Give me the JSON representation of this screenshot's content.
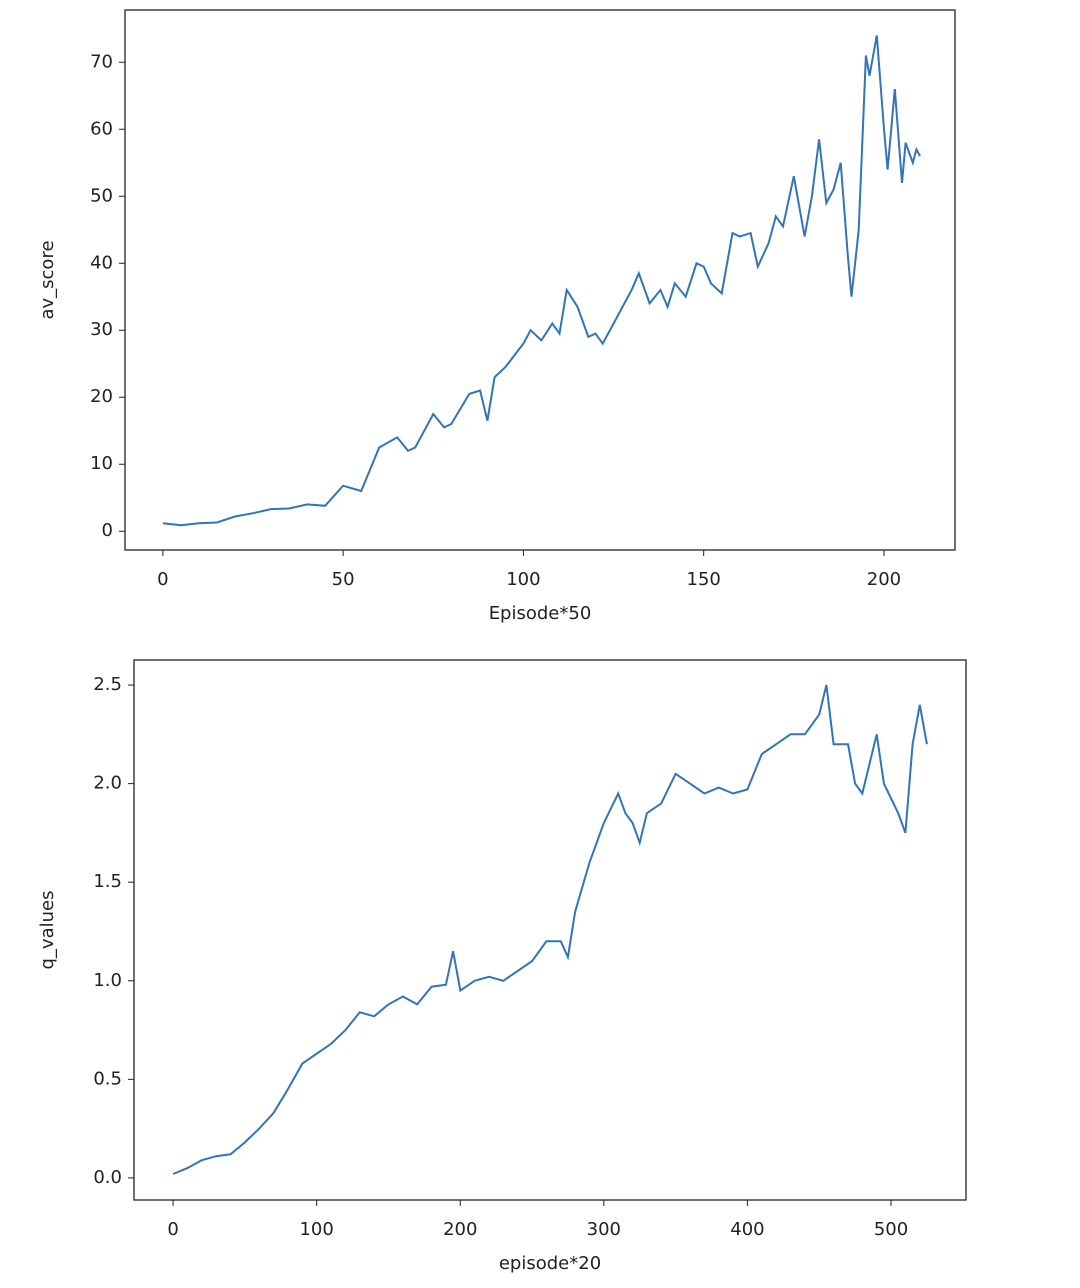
{
  "chart_data": [
    {
      "type": "line",
      "xlabel": "Episode*50",
      "ylabel": "av_score",
      "x": [
        0,
        5,
        10,
        15,
        20,
        25,
        30,
        35,
        40,
        45,
        50,
        55,
        60,
        65,
        68,
        70,
        75,
        78,
        80,
        85,
        88,
        90,
        92,
        95,
        100,
        102,
        105,
        108,
        110,
        112,
        115,
        118,
        120,
        122,
        125,
        130,
        132,
        135,
        138,
        140,
        142,
        145,
        148,
        150,
        152,
        155,
        158,
        160,
        163,
        165,
        168,
        170,
        172,
        175,
        178,
        180,
        182,
        184,
        186,
        188,
        190,
        191,
        193,
        195,
        196,
        198,
        200,
        201,
        203,
        205,
        206,
        208,
        209,
        210
      ],
      "series": [
        {
          "name": "av_score",
          "color": "#3274b8",
          "values": [
            1.2,
            0.9,
            1.2,
            1.3,
            2.2,
            2.7,
            3.3,
            3.4,
            4.0,
            3.8,
            6.8,
            6.0,
            12.5,
            14,
            12,
            12.5,
            17.5,
            15.5,
            16,
            20.5,
            21,
            16.5,
            23,
            24.5,
            28,
            30,
            28.5,
            31,
            29.5,
            36,
            33.5,
            29,
            29.5,
            28,
            31,
            36,
            38.5,
            34,
            36,
            33.5,
            37,
            35,
            40,
            39.5,
            37,
            35.5,
            44.5,
            44,
            44.5,
            39.5,
            43,
            47,
            45.5,
            53,
            44,
            50,
            58.5,
            49,
            51,
            55,
            41,
            35,
            45,
            71,
            68,
            74,
            60,
            54,
            66,
            52,
            58,
            55,
            57,
            56
          ]
        }
      ],
      "xlim": [
        -10.5,
        219.7
      ],
      "ylim": [
        -2.8,
        77.8
      ],
      "xticks": [
        0,
        50,
        100,
        150,
        200
      ],
      "yticks": [
        0,
        10,
        20,
        30,
        40,
        50,
        60,
        70
      ]
    },
    {
      "type": "line",
      "xlabel": "episode*20",
      "ylabel": "q_values",
      "x": [
        0,
        10,
        20,
        30,
        40,
        50,
        60,
        70,
        80,
        90,
        100,
        110,
        120,
        130,
        140,
        150,
        160,
        170,
        180,
        190,
        195,
        200,
        210,
        220,
        230,
        240,
        250,
        260,
        270,
        275,
        280,
        290,
        300,
        310,
        315,
        320,
        325,
        330,
        340,
        350,
        360,
        370,
        380,
        390,
        400,
        410,
        420,
        430,
        440,
        450,
        455,
        460,
        470,
        475,
        480,
        490,
        495,
        505,
        510,
        515,
        520,
        525
      ],
      "series": [
        {
          "name": "q_values",
          "color": "#3274b8",
          "values": [
            0.02,
            0.05,
            0.09,
            0.11,
            0.12,
            0.18,
            0.25,
            0.33,
            0.45,
            0.58,
            0.63,
            0.68,
            0.75,
            0.84,
            0.82,
            0.88,
            0.92,
            0.88,
            0.97,
            0.98,
            1.15,
            0.95,
            1.0,
            1.02,
            1.0,
            1.05,
            1.1,
            1.2,
            1.2,
            1.12,
            1.35,
            1.6,
            1.8,
            1.95,
            1.85,
            1.8,
            1.7,
            1.85,
            1.9,
            2.05,
            2.0,
            1.95,
            1.98,
            1.95,
            1.97,
            2.15,
            2.2,
            2.25,
            2.25,
            2.35,
            2.5,
            2.2,
            2.2,
            2.0,
            1.95,
            2.25,
            2.0,
            1.85,
            1.75,
            2.2,
            2.4,
            2.2
          ]
        }
      ],
      "xlim": [
        -27.2,
        552.2
      ],
      "ylim": [
        -0.112,
        2.627
      ],
      "xticks": [
        0,
        100,
        200,
        300,
        400,
        500
      ],
      "yticks": [
        {
          "value": 0,
          "label": "0.0"
        },
        0.5,
        {
          "value": 1,
          "label": "1.0"
        },
        1.5,
        {
          "value": 2,
          "label": "2.0"
        },
        2.5
      ]
    }
  ]
}
